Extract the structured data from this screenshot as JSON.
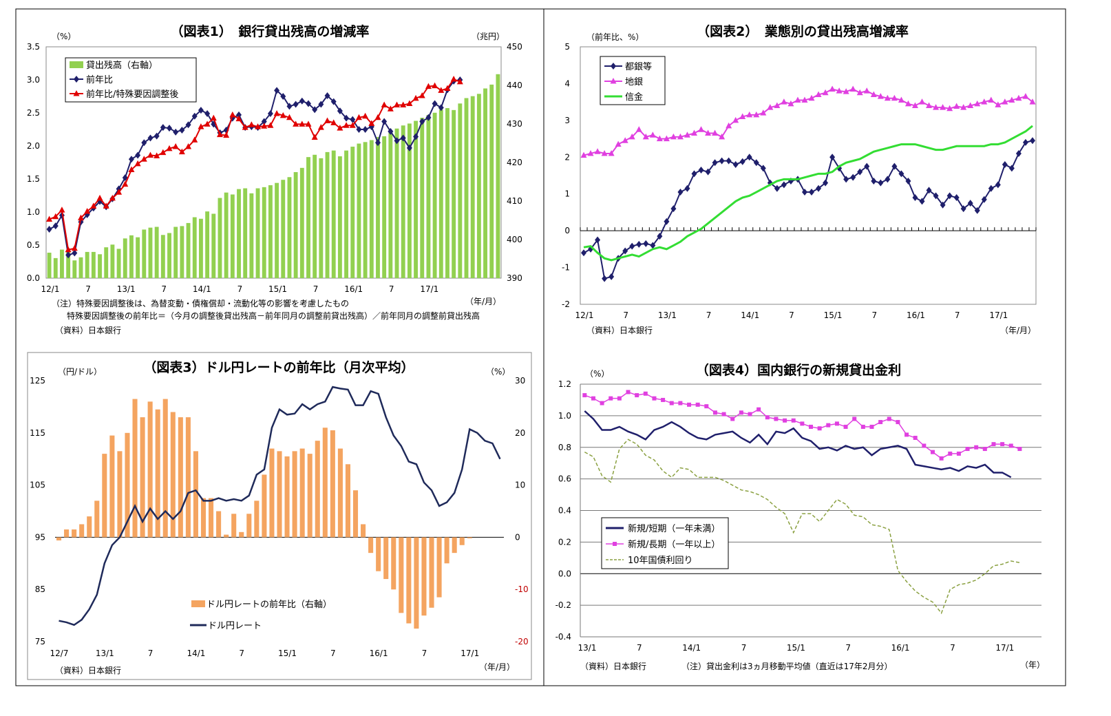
{
  "chart_data": [
    {
      "type": "bar+line",
      "title": "（図表1）　銀行貸出残高の増減率",
      "y_left_unit": "（%）",
      "y_right_unit": "（兆円）",
      "x_unit": "（年/月）",
      "ylim_left": [
        0,
        3.5
      ],
      "yticks_left": [
        "0.0",
        "0.5",
        "1.0",
        "1.5",
        "2.0",
        "2.5",
        "3.0",
        "3.5"
      ],
      "ylim_right": [
        390,
        450
      ],
      "yticks_right": [
        "390",
        "400",
        "410",
        "420",
        "430",
        "440",
        "450"
      ],
      "xticks": [
        {
          "i": 0,
          "label": "12/1"
        },
        {
          "i": 6,
          "label": "7"
        },
        {
          "i": 12,
          "label": "13/1"
        },
        {
          "i": 18,
          "label": "7"
        },
        {
          "i": 24,
          "label": "14/1"
        },
        {
          "i": 30,
          "label": "7"
        },
        {
          "i": 36,
          "label": "15/1"
        },
        {
          "i": 42,
          "label": "7"
        },
        {
          "i": 48,
          "label": "16/1"
        },
        {
          "i": 54,
          "label": "7"
        },
        {
          "i": 60,
          "label": "17/1"
        }
      ],
      "legend": [
        "貸出残高（右軸）",
        "前年比",
        "前年比/特殊要因調整後"
      ],
      "notes": [
        "（注）特殊要因調整後は、為替変動・債権償却・流動化等の影響を考慮したもの",
        "特殊要因調整後の前年比＝（今月の調整後貸出残高－前年同月の調整前貸出残高）／前年同月の調整前貸出残高",
        "（資料）日本銀行"
      ],
      "series": [
        {
          "name": "貸出残高（右軸）",
          "type": "bar",
          "axis": "right",
          "color": "#92d050",
          "values": [
            396.6,
            395.2,
            397.4,
            396.8,
            394.6,
            395.4,
            396.8,
            396.8,
            396.2,
            398,
            398.7,
            397.6,
            400.3,
            401.1,
            400.6,
            402.6,
            403.1,
            403.3,
            401.2,
            401.7,
            403.3,
            403.5,
            404.3,
            405.8,
            405.4,
            407.3,
            406.7,
            410.8,
            412.2,
            411.7,
            413.1,
            413.3,
            412,
            413.3,
            413.6,
            414.1,
            414.7,
            415.5,
            416.2,
            417.5,
            418.6,
            421.4,
            422,
            421.1,
            422.7,
            423.1,
            421.6,
            423.1,
            424.1,
            424.9,
            425.3,
            425.8,
            426.6,
            426.8,
            428.1,
            428.8,
            429.6,
            430.1,
            430.8,
            431.6,
            432.3,
            432.9,
            433.7,
            434.1,
            433.6,
            435.3,
            436.7,
            437.2,
            437.8,
            439.2,
            440.2,
            442.9
          ]
        },
        {
          "name": "前年比",
          "type": "line",
          "axis": "left",
          "color": "#1f1f6b",
          "marker": "diamond",
          "values": [
            0.74,
            0.79,
            0.95,
            0.35,
            0.38,
            0.85,
            0.96,
            1.06,
            1.16,
            1.08,
            1.2,
            1.35,
            1.52,
            1.8,
            1.86,
            2.05,
            2.12,
            2.15,
            2.28,
            2.27,
            2.21,
            2.24,
            2.32,
            2.45,
            2.54,
            2.49,
            2.33,
            2.2,
            2.24,
            2.42,
            2.47,
            2.28,
            2.29,
            2.28,
            2.37,
            2.49,
            2.84,
            2.75,
            2.6,
            2.63,
            2.68,
            2.64,
            2.55,
            2.63,
            2.76,
            2.67,
            2.53,
            2.42,
            2.4,
            2.25,
            2.25,
            2.29,
            2.05,
            2.37,
            2.22,
            2.08,
            2.12,
            1.97,
            2.14,
            2.37,
            2.43,
            2.64,
            2.58,
            2.85,
            2.98,
            3.0
          ]
        },
        {
          "name": "前年比/特殊要因調整後",
          "type": "line",
          "axis": "left",
          "color": "#e00000",
          "marker": "triangle",
          "values": [
            0.89,
            0.93,
            1.03,
            0.43,
            0.45,
            0.91,
            1.01,
            1.09,
            1.21,
            1.09,
            1.21,
            1.3,
            1.42,
            1.64,
            1.73,
            1.8,
            1.86,
            1.85,
            1.9,
            1.96,
            1.99,
            1.91,
            1.99,
            2.09,
            2.29,
            2.33,
            2.42,
            2.17,
            2.16,
            2.47,
            2.41,
            2.28,
            2.32,
            2.29,
            2.3,
            2.31,
            2.49,
            2.46,
            2.43,
            2.33,
            2.33,
            2.33,
            2.13,
            2.28,
            2.38,
            2.35,
            2.27,
            2.31,
            2.31,
            2.43,
            2.45,
            2.34,
            2.43,
            2.62,
            2.56,
            2.62,
            2.62,
            2.64,
            2.72,
            2.76,
            2.9,
            2.91,
            2.84,
            2.87,
            3.01,
            2.97
          ]
        }
      ]
    },
    {
      "type": "line",
      "title": "（図表2）　業態別の貸出残高増減率",
      "y_left_unit": "（前年比、%）",
      "x_unit": "（年/月）",
      "ylim": [
        -2,
        5
      ],
      "yticks": [
        "-2",
        "-1",
        "0",
        "1",
        "2",
        "3",
        "4",
        "5"
      ],
      "xticks": [
        {
          "i": 0,
          "label": "12/1"
        },
        {
          "i": 6,
          "label": "7"
        },
        {
          "i": 12,
          "label": "13/1"
        },
        {
          "i": 18,
          "label": "7"
        },
        {
          "i": 24,
          "label": "14/1"
        },
        {
          "i": 30,
          "label": "7"
        },
        {
          "i": 36,
          "label": "15/1"
        },
        {
          "i": 42,
          "label": "7"
        },
        {
          "i": 48,
          "label": "16/1"
        },
        {
          "i": 54,
          "label": "7"
        },
        {
          "i": 60,
          "label": "17/1"
        }
      ],
      "legend": [
        "都銀等",
        "地銀",
        "信金"
      ],
      "notes": [
        "（資料）日本銀行"
      ],
      "series": [
        {
          "name": "都銀等",
          "color": "#1f1f6b",
          "marker": "diamond",
          "values": [
            -0.6,
            -0.5,
            -0.25,
            -1.3,
            -1.25,
            -0.75,
            -0.55,
            -0.42,
            -0.37,
            -0.35,
            -0.4,
            -0.15,
            0.25,
            0.6,
            1.05,
            1.15,
            1.55,
            1.65,
            1.6,
            1.85,
            1.9,
            1.9,
            1.8,
            1.88,
            2.0,
            1.85,
            1.7,
            1.3,
            1.15,
            1.25,
            1.35,
            1.4,
            1.05,
            1.05,
            1.15,
            1.3,
            2.0,
            1.7,
            1.4,
            1.45,
            1.6,
            1.75,
            1.35,
            1.3,
            1.4,
            1.75,
            1.55,
            1.35,
            0.9,
            0.8,
            1.1,
            0.95,
            0.7,
            0.95,
            0.9,
            0.6,
            0.75,
            0.55,
            0.85,
            1.15,
            1.25,
            1.8,
            1.7,
            2.1,
            2.4,
            2.45
          ]
        },
        {
          "name": "地銀",
          "color": "#e040e0",
          "marker": "triangle",
          "values": [
            2.05,
            2.1,
            2.15,
            2.1,
            2.1,
            2.35,
            2.45,
            2.55,
            2.75,
            2.55,
            2.6,
            2.5,
            2.5,
            2.55,
            2.55,
            2.6,
            2.65,
            2.75,
            2.65,
            2.65,
            2.55,
            2.85,
            3.0,
            3.1,
            3.15,
            3.15,
            3.2,
            3.35,
            3.4,
            3.5,
            3.45,
            3.55,
            3.55,
            3.6,
            3.7,
            3.75,
            3.85,
            3.8,
            3.78,
            3.85,
            3.75,
            3.8,
            3.7,
            3.65,
            3.6,
            3.6,
            3.55,
            3.45,
            3.4,
            3.5,
            3.4,
            3.35,
            3.35,
            3.32,
            3.38,
            3.35,
            3.4,
            3.45,
            3.5,
            3.55,
            3.42,
            3.5,
            3.55,
            3.6,
            3.65,
            3.5
          ]
        },
        {
          "name": "信金",
          "color": "#33dd33",
          "marker": "none",
          "values": [
            -0.45,
            -0.42,
            -0.6,
            -0.75,
            -0.8,
            -0.75,
            -0.7,
            -0.65,
            -0.7,
            -0.6,
            -0.5,
            -0.45,
            -0.5,
            -0.4,
            -0.3,
            -0.15,
            -0.05,
            0.05,
            0.2,
            0.35,
            0.5,
            0.65,
            0.8,
            0.9,
            0.95,
            1.05,
            1.15,
            1.25,
            1.35,
            1.4,
            1.4,
            1.4,
            1.45,
            1.5,
            1.55,
            1.55,
            1.6,
            1.75,
            1.85,
            1.9,
            1.95,
            2.05,
            2.15,
            2.2,
            2.25,
            2.3,
            2.35,
            2.35,
            2.35,
            2.3,
            2.25,
            2.2,
            2.2,
            2.25,
            2.3,
            2.3,
            2.3,
            2.3,
            2.3,
            2.35,
            2.35,
            2.4,
            2.5,
            2.6,
            2.7,
            2.85
          ]
        }
      ]
    },
    {
      "type": "bar+line",
      "title": "（図表3）ドル円レートの前年比（月次平均）",
      "y_left_unit": "（円/ドル）",
      "y_right_unit": "（%）",
      "x_unit": "（年/月）",
      "ylim_left": [
        75,
        125
      ],
      "yticks_left": [
        "75",
        "85",
        "95",
        "105",
        "115",
        "125"
      ],
      "ylim_right": [
        -20,
        30
      ],
      "yticks_right": [
        "-20",
        "-10",
        "0",
        "10",
        "20",
        "30"
      ],
      "xticks": [
        {
          "i": 0,
          "label": "12/7"
        },
        {
          "i": 6,
          "label": "13/1"
        },
        {
          "i": 12,
          "label": "7"
        },
        {
          "i": 18,
          "label": "14/1"
        },
        {
          "i": 24,
          "label": "7"
        },
        {
          "i": 30,
          "label": "15/1"
        },
        {
          "i": 36,
          "label": "7"
        },
        {
          "i": 42,
          "label": "16/1"
        },
        {
          "i": 48,
          "label": "7"
        },
        {
          "i": 54,
          "label": "17/1"
        }
      ],
      "legend": [
        "ドル円レートの前年比（右軸）",
        "ドル円レート"
      ],
      "notes": [
        "（資料）日本銀行"
      ],
      "series": [
        {
          "name": "ドル円レートの前年比（右軸）",
          "type": "bar",
          "axis": "right",
          "color": "#f4a460",
          "values": [
            -0.6,
            1.5,
            1.5,
            2.5,
            4.0,
            7.0,
            16.0,
            19.5,
            16.5,
            20.0,
            26.5,
            23.0,
            26.0,
            24.5,
            26.5,
            24.0,
            23.0,
            23.0,
            16.5,
            7.5,
            7.5,
            5.0,
            0.5,
            4.5,
            1.0,
            4.5,
            7.0,
            12.0,
            17.0,
            16.5,
            15.5,
            16.5,
            17.0,
            16.0,
            18.5,
            21.0,
            20.5,
            17.0,
            14.0,
            9.0,
            2.5,
            -3.0,
            -6.5,
            -8.0,
            -10.0,
            -14.5,
            -16.5,
            -17.5,
            -15.0,
            -13.5,
            -11.5,
            -5.0,
            -3.0,
            -1.5,
            -0.2
          ]
        },
        {
          "name": "ドル円レート",
          "type": "line",
          "axis": "left",
          "color": "#1f2a5a",
          "marker": "none",
          "values": [
            79,
            78.7,
            78.2,
            79.2,
            81.2,
            84,
            90,
            93.5,
            95,
            98,
            101,
            98,
            100.5,
            98.5,
            100,
            98.5,
            100,
            103.5,
            104,
            102,
            102,
            102.5,
            102,
            102.3,
            102,
            103,
            107,
            108,
            116,
            119.5,
            118.5,
            118.7,
            120.5,
            119.5,
            120.5,
            121,
            123.8,
            123.5,
            123.3,
            120.3,
            120.3,
            123,
            122.5,
            118,
            114.5,
            112.5,
            109.5,
            109,
            105.5,
            104,
            101,
            101.7,
            103.5,
            108,
            115.7,
            115,
            113.5,
            113,
            110
          ]
        }
      ]
    },
    {
      "type": "line",
      "title": "（図表4）国内銀行の新規貸出金利",
      "y_left_unit": "（%）",
      "x_unit": "（年）",
      "ylim": [
        -0.4,
        1.2
      ],
      "yticks": [
        "-0.4",
        "-0.2",
        "0.0",
        "0.2",
        "0.4",
        "0.6",
        "0.8",
        "1.0",
        "1.2"
      ],
      "xticks": [
        {
          "i": 0,
          "label": "13/1"
        },
        {
          "i": 6,
          "label": "7"
        },
        {
          "i": 12,
          "label": "14/1"
        },
        {
          "i": 18,
          "label": "7"
        },
        {
          "i": 24,
          "label": "15/1"
        },
        {
          "i": 30,
          "label": "7"
        },
        {
          "i": 36,
          "label": "16/1"
        },
        {
          "i": 42,
          "label": "7"
        },
        {
          "i": 48,
          "label": "17/1"
        }
      ],
      "legend": [
        "新規/短期（一年未満）",
        "新規/長期（一年以上）",
        "10年国債利回り"
      ],
      "notes": [
        "（資料）日本銀行",
        "（注）貸出金利は3ヵ月移動平均値（直近は17年2月分）"
      ],
      "series": [
        {
          "name": "新規/短期（一年未満）",
          "color": "#1f1f6b",
          "marker": "none",
          "values": [
            1.03,
            0.98,
            0.91,
            0.91,
            0.93,
            0.9,
            0.88,
            0.85,
            0.91,
            0.93,
            0.96,
            0.93,
            0.89,
            0.86,
            0.85,
            0.88,
            0.89,
            0.9,
            0.86,
            0.83,
            0.88,
            0.82,
            0.9,
            0.89,
            0.92,
            0.86,
            0.84,
            0.79,
            0.8,
            0.78,
            0.81,
            0.79,
            0.8,
            0.75,
            0.79,
            0.8,
            0.81,
            0.79,
            0.69,
            0.68,
            0.67,
            0.66,
            0.67,
            0.65,
            0.68,
            0.67,
            0.69,
            0.64,
            0.64,
            0.61
          ]
        },
        {
          "name": "新規/長期（一年以上）",
          "color": "#e040e0",
          "marker": "square",
          "values": [
            1.13,
            1.11,
            1.08,
            1.11,
            1.11,
            1.15,
            1.13,
            1.14,
            1.11,
            1.1,
            1.08,
            1.08,
            1.07,
            1.07,
            1.06,
            1.02,
            1.01,
            0.98,
            1.02,
            1.01,
            1.04,
            0.99,
            0.98,
            0.97,
            0.97,
            0.95,
            0.93,
            0.92,
            0.94,
            0.95,
            0.93,
            0.98,
            0.93,
            0.93,
            0.96,
            0.98,
            0.96,
            0.88,
            0.86,
            0.81,
            0.77,
            0.73,
            0.76,
            0.76,
            0.79,
            0.8,
            0.79,
            0.82,
            0.82,
            0.81,
            0.79
          ]
        },
        {
          "name": "10年国債利回り",
          "color": "#8aa040",
          "marker": "dashed",
          "values": [
            0.77,
            0.74,
            0.62,
            0.58,
            0.79,
            0.85,
            0.82,
            0.75,
            0.72,
            0.65,
            0.61,
            0.67,
            0.66,
            0.61,
            0.61,
            0.61,
            0.59,
            0.56,
            0.53,
            0.52,
            0.5,
            0.47,
            0.42,
            0.38,
            0.26,
            0.38,
            0.38,
            0.33,
            0.4,
            0.47,
            0.44,
            0.37,
            0.36,
            0.31,
            0.3,
            0.28,
            0.02,
            -0.05,
            -0.11,
            -0.15,
            -0.18,
            -0.25,
            -0.1,
            -0.07,
            -0.06,
            -0.04,
            0.0,
            0.05,
            0.06,
            0.08,
            0.07
          ]
        }
      ]
    }
  ]
}
